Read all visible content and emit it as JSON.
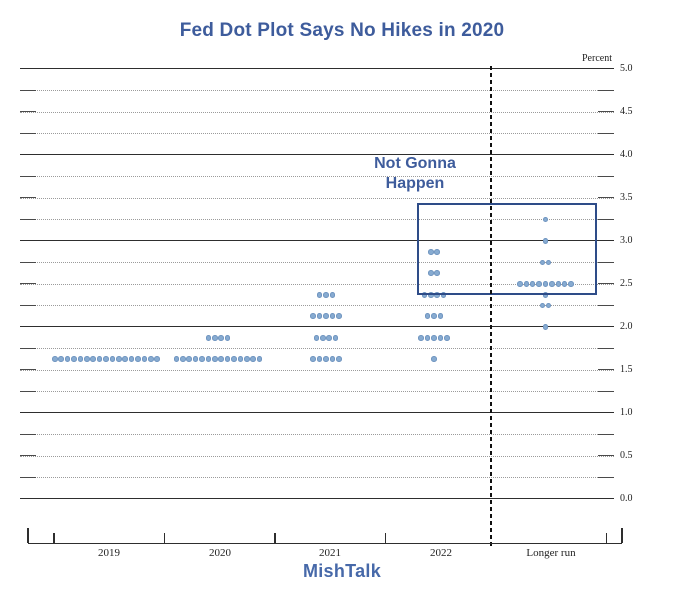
{
  "header": {
    "title": "Fed Dot Plot Says No Hikes in 2020"
  },
  "annotation": {
    "line1": "Not Gonna",
    "line2": "Happen"
  },
  "footer": {
    "watermark": "MishTalk"
  },
  "colors": {
    "accent_blue": "#3e5c9c",
    "dot_fill": "#87abd1",
    "highlight_box_border": "#2e4c88",
    "watermark_blue": "#4769a9"
  },
  "chart_data": {
    "type": "scatter",
    "subtype": "fed-dot-plot",
    "title": "Fed Dot Plot Says No Hikes in 2020",
    "ylabel": "Percent",
    "xlabel": "",
    "ylim": [
      0.0,
      5.0
    ],
    "y_gridline_step": 0.25,
    "y_label_step": 0.5,
    "y_tick_labels": [
      "5.0",
      "4.5",
      "4.0",
      "3.5",
      "3.0",
      "2.5",
      "2.0",
      "1.5",
      "1.0",
      "0.5",
      "0.0"
    ],
    "grid": true,
    "legend": false,
    "categories": [
      "2019",
      "2020",
      "2021",
      "2022",
      "Longer run"
    ],
    "series": [
      {
        "name": "2019",
        "dots": [
          {
            "rate": 1.625,
            "count": 17
          }
        ]
      },
      {
        "name": "2020",
        "dots": [
          {
            "rate": 1.875,
            "count": 4
          },
          {
            "rate": 1.625,
            "count": 14
          }
        ]
      },
      {
        "name": "2021",
        "dots": [
          {
            "rate": 2.375,
            "count": 3
          },
          {
            "rate": 2.125,
            "count": 5
          },
          {
            "rate": 1.875,
            "count": 4
          },
          {
            "rate": 1.625,
            "count": 5
          }
        ]
      },
      {
        "name": "2022",
        "dots": [
          {
            "rate": 2.875,
            "count": 2
          },
          {
            "rate": 2.625,
            "count": 2
          },
          {
            "rate": 2.375,
            "count": 4
          },
          {
            "rate": 2.125,
            "count": 3
          },
          {
            "rate": 1.875,
            "count": 5
          },
          {
            "rate": 1.625,
            "count": 1
          }
        ]
      },
      {
        "name": "Longer run",
        "dots": [
          {
            "rate": 3.25,
            "count": 1
          },
          {
            "rate": 3.0,
            "count": 1
          },
          {
            "rate": 2.75,
            "count": 2
          },
          {
            "rate": 2.5,
            "count": 9
          },
          {
            "rate": 2.375,
            "count": 1
          },
          {
            "rate": 2.25,
            "count": 2
          },
          {
            "rate": 2.0,
            "count": 1
          }
        ]
      }
    ],
    "annotations": [
      {
        "type": "text",
        "text": "Not Gonna Happen"
      },
      {
        "type": "box",
        "x_span": [
          "2022",
          "Longer run"
        ],
        "y_range": [
          2.42,
          3.44
        ]
      },
      {
        "type": "vline",
        "style": "dashed",
        "position": "between 2022 and Longer run"
      }
    ]
  }
}
